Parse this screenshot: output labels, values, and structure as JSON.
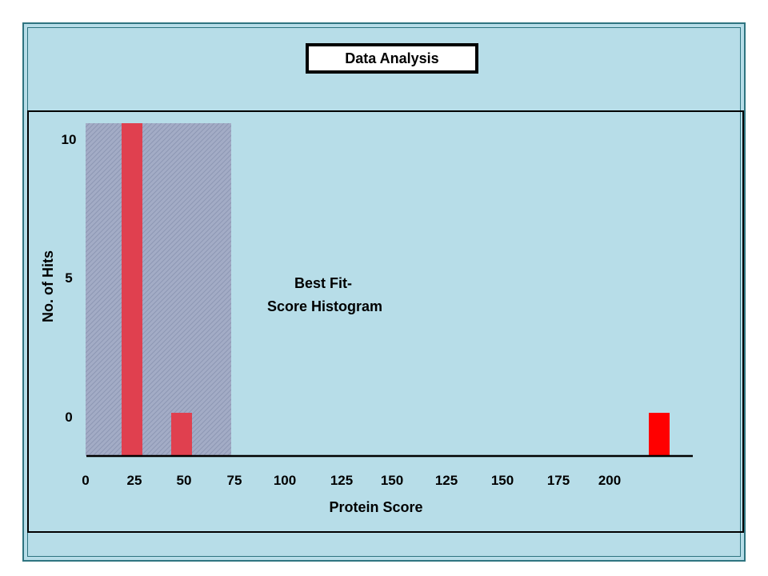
{
  "header": {
    "title": "Data Analysis"
  },
  "chart_data": {
    "type": "bar",
    "title": "",
    "xlabel": "Protein Score",
    "ylabel": "No. of Hits",
    "x_tick_labels": [
      "0",
      "25",
      "50",
      "75",
      "100",
      "125",
      "150",
      "125",
      "150",
      "175",
      "200"
    ],
    "y_tick_labels": [
      "10",
      "5",
      "0"
    ],
    "annotation": [
      "Best Fit-",
      "Score Histogram"
    ],
    "shaded_region_label": "",
    "shaded_region": {
      "x_from": 0,
      "x_to": 75
    },
    "bars": [
      {
        "x": 25,
        "value": 10,
        "color": "#e0404f"
      },
      {
        "x": 50,
        "value": 0,
        "color": "#e0404f"
      },
      {
        "x": 225,
        "value": 0,
        "color": "#ff0000"
      }
    ],
    "colors": {
      "background": "#b7dde8",
      "shaded_region": "#9fa8c3",
      "bar_inside_region": "#e0404f",
      "bar_outlier": "#ff0000",
      "axis": "#000000"
    },
    "grid": false,
    "legend": "none"
  }
}
